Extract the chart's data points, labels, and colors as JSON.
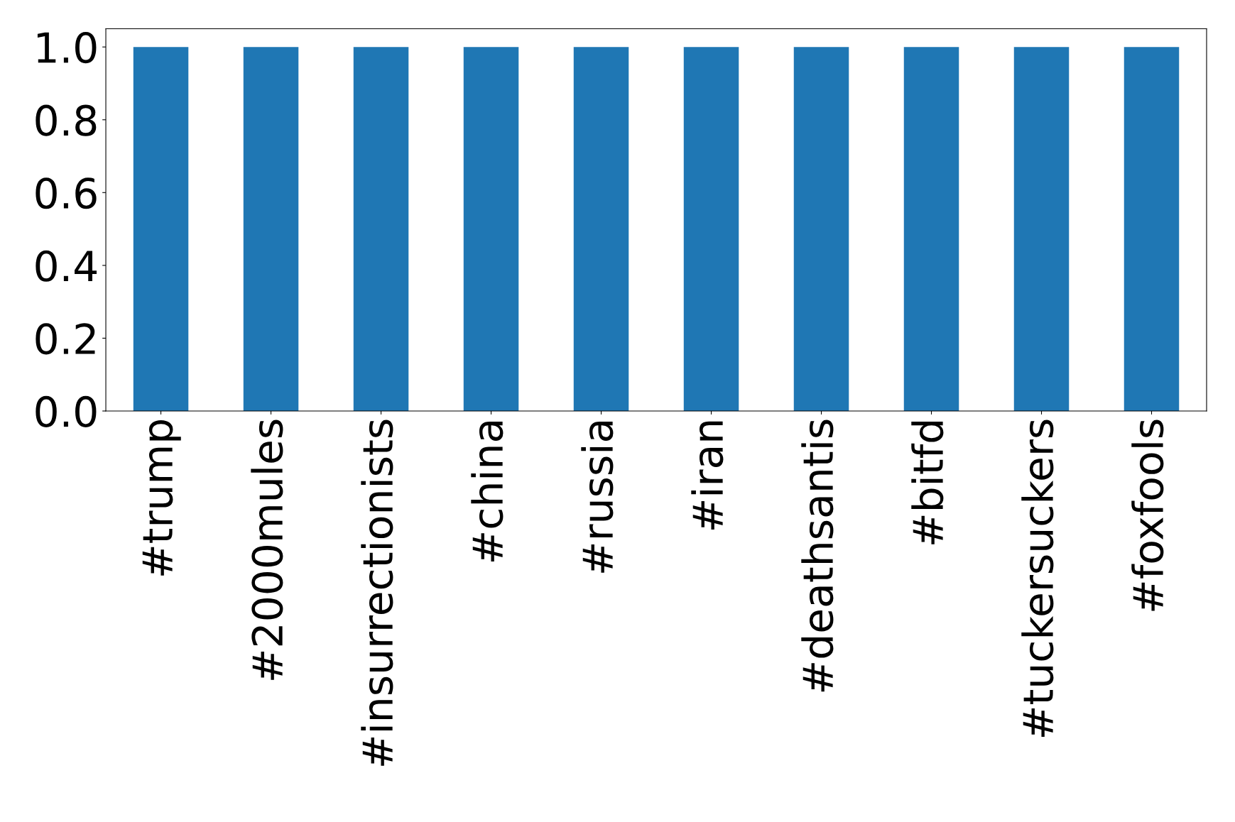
{
  "chart_data": {
    "type": "bar",
    "categories": [
      "#trump",
      "#2000mules",
      "#insurrectionists",
      "#china",
      "#russia",
      "#iran",
      "#deathsantis",
      "#bitfd",
      "#tuckersuckers",
      "#foxfools"
    ],
    "values": [
      1,
      1,
      1,
      1,
      1,
      1,
      1,
      1,
      1,
      1
    ],
    "color": "#1f77b4",
    "ylim": [
      0,
      1.05
    ],
    "yticks": [
      {
        "value": 0,
        "label": "0.0"
      },
      {
        "value": 0.2,
        "label": "0.2"
      },
      {
        "value": 0.4,
        "label": "0.4"
      },
      {
        "value": 0.6,
        "label": "0.6"
      },
      {
        "value": 0.8,
        "label": "0.8"
      },
      {
        "value": 1.0,
        "label": "1.0"
      }
    ],
    "grid": false
  }
}
